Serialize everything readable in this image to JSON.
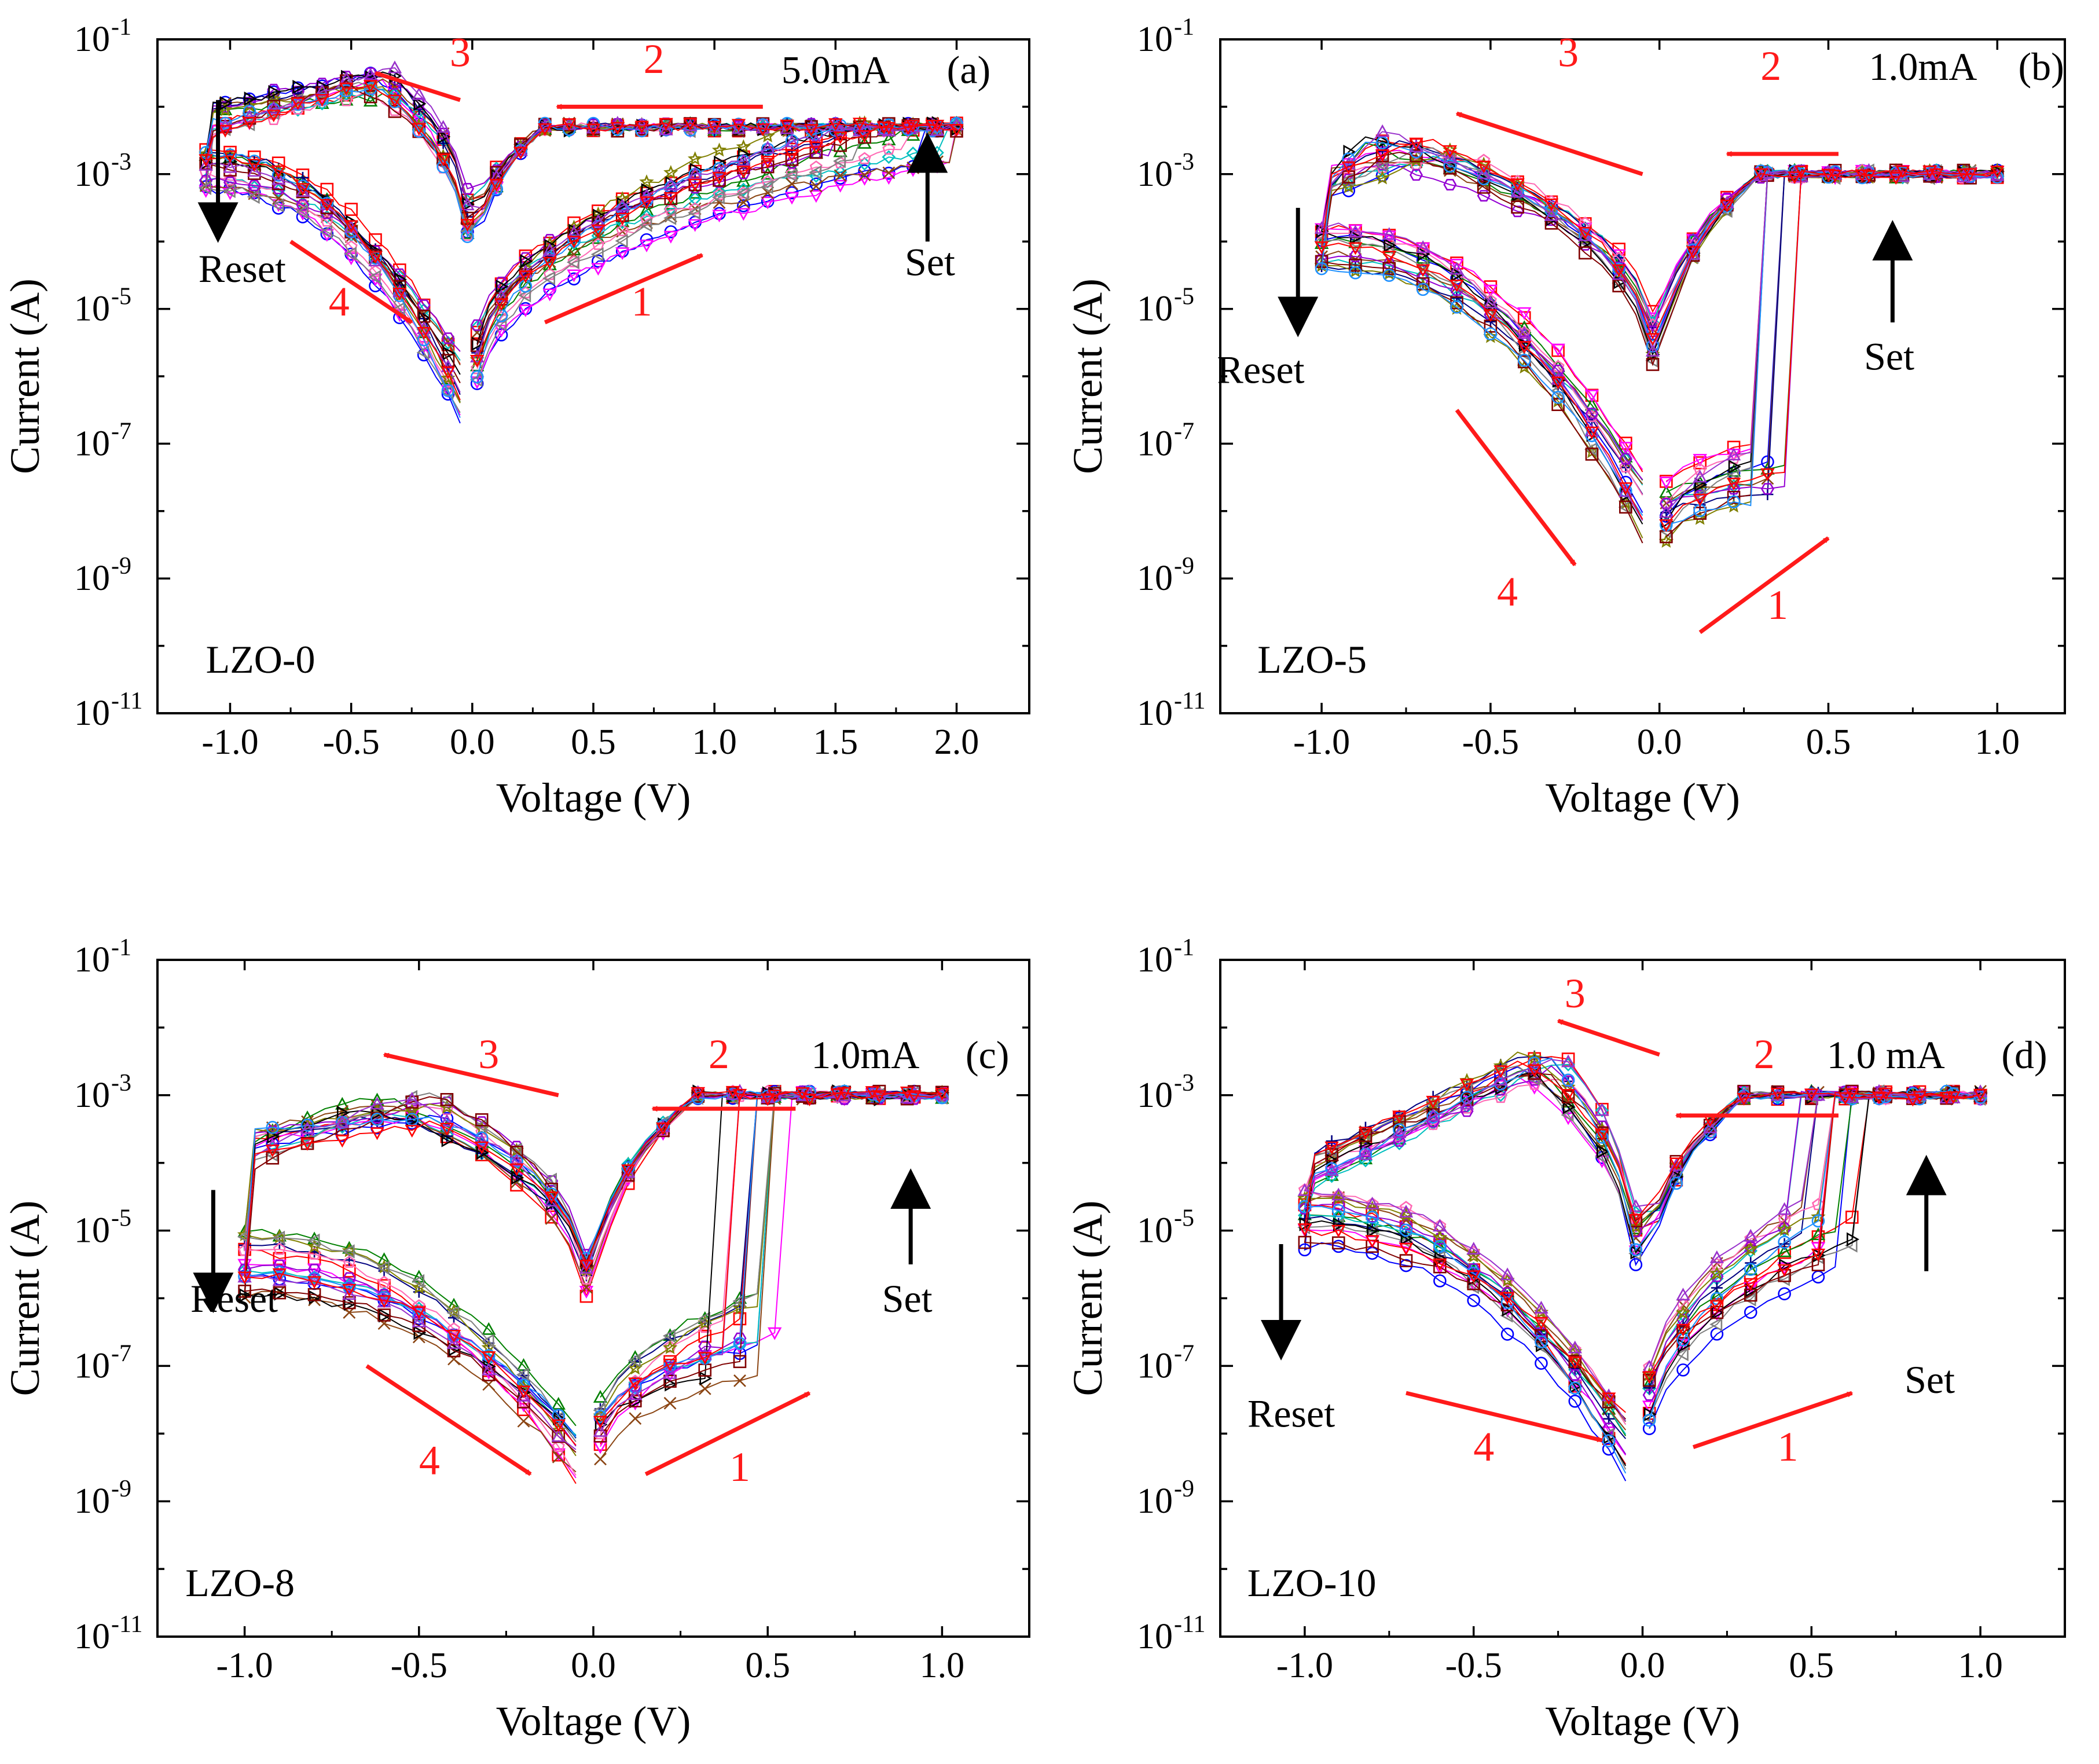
{
  "figure": {
    "x_axis_label": "Voltage (V)",
    "y_axis_label": "Current (A)",
    "colors": {
      "axis": "#000000",
      "red_arrow": "#ff1a1a",
      "black_arrow": "#000000",
      "series": [
        "#ff0000",
        "#0000ff",
        "#008000",
        "#ff00ff",
        "#00bfbf",
        "#8b4513",
        "#000080",
        "#ff69b4",
        "#9400d3",
        "#808000",
        "#808080",
        "#000000",
        "#800000",
        "#1e90ff",
        "#9932cc"
      ]
    }
  },
  "chart_data": [
    {
      "type": "scatter",
      "panel": "(a)",
      "sample": "LZO-0",
      "compliance": "5.0mA",
      "compliance_A": 0.005,
      "xlabel": "Voltage (V)",
      "ylabel": "Current (A)",
      "xlim": [
        -1.3,
        2.3
      ],
      "ylim": [
        1e-11,
        0.1
      ],
      "yscale": "log",
      "xticks": [
        "-1.0",
        "-0.5",
        "0.0",
        "0.5",
        "1.0",
        "1.5",
        "2.0"
      ],
      "xtick_values": [
        -1.0,
        -0.5,
        0.0,
        0.5,
        1.0,
        1.5,
        2.0
      ],
      "yticks": [
        {
          "base": "10",
          "exp": "-1",
          "v": -1
        },
        {
          "base": "10",
          "exp": "-3",
          "v": -3
        },
        {
          "base": "10",
          "exp": "-5",
          "v": -5
        },
        {
          "base": "10",
          "exp": "-7",
          "v": -7
        },
        {
          "base": "10",
          "exp": "-9",
          "v": -9
        },
        {
          "base": "10",
          "exp": "-11",
          "v": -11
        }
      ],
      "set_voltage": 1.75,
      "reset_voltage": -0.42,
      "hrs_log_at_neg1": -2.9,
      "hrs_log_at_pos_end": -2.4,
      "lrs_log_at_neg1": -2.2,
      "lrs_peak_log": -1.6,
      "dip_log": -6.5,
      "vmax": 2.0,
      "vmin": -1.1,
      "cycles": 16,
      "annotations": {
        "step_1": "1",
        "step_2": "2",
        "step_3": "3",
        "step_4": "4",
        "set": "Set",
        "reset": "Reset"
      },
      "annotation_pos": {
        "label_1": [
          0.7,
          -5.1
        ],
        "arrow_1": [
          [
            0.3,
            -5.2
          ],
          [
            0.95,
            -4.2
          ]
        ],
        "label_2": [
          0.75,
          -1.5
        ],
        "arrow_2": [
          [
            1.2,
            -2.0
          ],
          [
            0.35,
            -2.0
          ]
        ],
        "label_3": [
          -0.05,
          -1.4
        ],
        "arrow_3": [
          [
            -0.05,
            -1.9
          ],
          [
            -0.4,
            -1.5
          ]
        ],
        "label_4": [
          -0.55,
          -5.1
        ],
        "arrow_4": [
          [
            -0.75,
            -4.0
          ],
          [
            -0.25,
            -5.2
          ]
        ],
        "set_label": [
          1.89,
          -4.5
        ],
        "set_arrow": [
          [
            1.88,
            -4.0
          ],
          [
            1.88,
            -2.5
          ]
        ],
        "reset_label": [
          -0.95,
          -4.6
        ],
        "reset_arrow": [
          [
            -1.05,
            -1.9
          ],
          [
            -1.05,
            -3.9
          ]
        ],
        "sample_label": [
          -1.1,
          -10.4
        ],
        "compliance_label": [
          1.5,
          -1.65
        ],
        "panel_label": [
          2.05,
          -1.65
        ]
      }
    },
    {
      "type": "scatter",
      "panel": "(b)",
      "sample": "LZO-5",
      "compliance": "1.0mA",
      "compliance_A": 0.001,
      "xlabel": "Voltage (V)",
      "ylabel": "Current (A)",
      "xlim": [
        -1.3,
        1.2
      ],
      "ylim": [
        1e-11,
        0.1
      ],
      "yscale": "log",
      "xticks": [
        "-1.0",
        "-0.5",
        "0.0",
        "0.5",
        "1.0"
      ],
      "xtick_values": [
        -1.0,
        -0.5,
        0.0,
        0.5,
        1.0
      ],
      "yticks": [
        {
          "base": "10",
          "exp": "-1",
          "v": -1
        },
        {
          "base": "10",
          "exp": "-3",
          "v": -3
        },
        {
          "base": "10",
          "exp": "-5",
          "v": -5
        },
        {
          "base": "10",
          "exp": "-7",
          "v": -7
        },
        {
          "base": "10",
          "exp": "-9",
          "v": -9
        },
        {
          "base": "10",
          "exp": "-11",
          "v": -11
        }
      ],
      "set_voltage": 0.33,
      "reset_voltage": -0.7,
      "hrs_log_at_neg1": -4.0,
      "hrs_log_at_pos_end": -7.3,
      "lrs_log_at_neg1": -3.2,
      "lrs_peak_log": -2.6,
      "dip_log": -8.4,
      "vmax": 1.0,
      "vmin": -1.0,
      "cycles": 16,
      "annotations": {
        "step_1": "1",
        "step_2": "2",
        "step_3": "3",
        "step_4": "4",
        "set": "Set",
        "reset": "Reset"
      },
      "annotation_pos": {
        "label_1": [
          0.35,
          -9.6
        ],
        "arrow_1": [
          [
            0.12,
            -9.8
          ],
          [
            0.5,
            -8.4
          ]
        ],
        "label_2": [
          0.33,
          -1.6
        ],
        "arrow_2": [
          [
            0.53,
            -2.7
          ],
          [
            0.2,
            -2.7
          ]
        ],
        "label_3": [
          -0.27,
          -1.4
        ],
        "arrow_3": [
          [
            -0.05,
            -3.0
          ],
          [
            -0.6,
            -2.1
          ]
        ],
        "label_4": [
          -0.45,
          -9.4
        ],
        "arrow_4": [
          [
            -0.6,
            -6.5
          ],
          [
            -0.25,
            -8.8
          ]
        ],
        "set_label": [
          0.68,
          -5.9
        ],
        "set_arrow": [
          [
            0.69,
            -5.2
          ],
          [
            0.69,
            -3.8
          ]
        ],
        "reset_label": [
          -1.18,
          -6.1
        ],
        "reset_arrow": [
          [
            -1.07,
            -3.5
          ],
          [
            -1.07,
            -5.3
          ]
        ],
        "sample_label": [
          -1.19,
          -10.4
        ],
        "compliance_label": [
          0.78,
          -1.6
        ],
        "panel_label": [
          1.13,
          -1.6
        ]
      }
    },
    {
      "type": "scatter",
      "panel": "(c)",
      "sample": "LZO-8",
      "compliance": "1.0mA",
      "compliance_A": 0.001,
      "xlabel": "Voltage (V)",
      "ylabel": "Current (A)",
      "xlim": [
        -1.25,
        1.25
      ],
      "ylim": [
        1e-11,
        0.1
      ],
      "yscale": "log",
      "xticks": [
        "-1.0",
        "-0.5",
        "0.0",
        "0.5",
        "1.0"
      ],
      "xtick_values": [
        -1.0,
        -0.5,
        0.0,
        0.5,
        1.0
      ],
      "yticks": [
        {
          "base": "10",
          "exp": "-1",
          "v": -1
        },
        {
          "base": "10",
          "exp": "-3",
          "v": -3
        },
        {
          "base": "10",
          "exp": "-5",
          "v": -5
        },
        {
          "base": "10",
          "exp": "-7",
          "v": -7
        },
        {
          "base": "10",
          "exp": "-9",
          "v": -9
        },
        {
          "base": "10",
          "exp": "-11",
          "v": -11
        }
      ],
      "set_voltage": 0.45,
      "reset_voltage": -0.55,
      "hrs_log_at_neg1": -5.5,
      "hrs_log_at_pos_end": -6.5,
      "lrs_log_at_neg1": -3.8,
      "lrs_peak_log": -3.2,
      "dip_log": -8.6,
      "vmax": 1.0,
      "vmin": -1.0,
      "cycles": 16,
      "annotations": {
        "step_1": "1",
        "step_2": "2",
        "step_3": "3",
        "step_4": "4",
        "set": "Set",
        "reset": "Reset"
      },
      "annotation_pos": {
        "label_1": [
          0.42,
          -8.7
        ],
        "arrow_1": [
          [
            0.15,
            -8.6
          ],
          [
            0.62,
            -7.4
          ]
        ],
        "label_2": [
          0.36,
          -2.6
        ],
        "arrow_2": [
          [
            0.58,
            -3.2
          ],
          [
            0.17,
            -3.2
          ]
        ],
        "label_3": [
          -0.3,
          -2.6
        ],
        "arrow_3": [
          [
            -0.1,
            -3.0
          ],
          [
            -0.6,
            -2.4
          ]
        ],
        "label_4": [
          -0.47,
          -8.6
        ],
        "arrow_4": [
          [
            -0.65,
            -7.0
          ],
          [
            -0.18,
            -8.6
          ]
        ],
        "set_label": [
          0.9,
          -6.2
        ],
        "set_arrow": [
          [
            0.91,
            -5.5
          ],
          [
            0.91,
            -4.2
          ]
        ],
        "reset_label": [
          -1.03,
          -6.2
        ],
        "reset_arrow": [
          [
            -1.09,
            -4.4
          ],
          [
            -1.09,
            -6.1
          ]
        ],
        "sample_label": [
          -1.17,
          -10.4
        ],
        "compliance_label": [
          0.78,
          -2.6
        ],
        "panel_label": [
          1.13,
          -2.6
        ]
      }
    },
    {
      "type": "scatter",
      "panel": "(d)",
      "sample": "LZO-10",
      "compliance": "1.0 mA",
      "compliance_A": 0.001,
      "xlabel": "Voltage (V)",
      "ylabel": "Current (A)",
      "xlim": [
        -1.25,
        1.25
      ],
      "ylim": [
        1e-11,
        0.1
      ],
      "yscale": "log",
      "xticks": [
        "-1.0",
        "-0.5",
        "0.0",
        "0.5",
        "1.0"
      ],
      "xtick_values": [
        -1.0,
        -0.5,
        0.0,
        0.5,
        1.0
      ],
      "yticks": [
        {
          "base": "10",
          "exp": "-1",
          "v": -1
        },
        {
          "base": "10",
          "exp": "-3",
          "v": -3
        },
        {
          "base": "10",
          "exp": "-5",
          "v": -5
        },
        {
          "base": "10",
          "exp": "-7",
          "v": -7
        },
        {
          "base": "10",
          "exp": "-9",
          "v": -9
        },
        {
          "base": "10",
          "exp": "-11",
          "v": -11
        }
      ],
      "set_voltage": 0.55,
      "reset_voltage": -0.3,
      "hrs_log_at_neg1": -4.8,
      "hrs_log_at_pos_end": -5.0,
      "lrs_log_at_neg1": -4.2,
      "lrs_peak_log": -2.5,
      "dip_log": -8.6,
      "vmax": 1.0,
      "vmin": -1.0,
      "cycles": 16,
      "annotations": {
        "step_1": "1",
        "step_2": "2",
        "step_3": "3",
        "step_4": "4",
        "set": "Set",
        "reset": "Reset"
      },
      "annotation_pos": {
        "label_1": [
          0.43,
          -8.4
        ],
        "arrow_1": [
          [
            0.15,
            -8.2
          ],
          [
            0.62,
            -7.4
          ]
        ],
        "label_2": [
          0.36,
          -2.6
        ],
        "arrow_2": [
          [
            0.58,
            -3.3
          ],
          [
            0.1,
            -3.3
          ]
        ],
        "label_3": [
          -0.2,
          -1.7
        ],
        "arrow_3": [
          [
            0.05,
            -2.4
          ],
          [
            -0.25,
            -1.9
          ]
        ],
        "label_4": [
          -0.47,
          -8.4
        ],
        "arrow_4": [
          [
            -0.7,
            -7.4
          ],
          [
            -0.12,
            -8.1
          ]
        ],
        "set_label": [
          0.85,
          -7.4
        ],
        "set_arrow": [
          [
            0.84,
            -5.6
          ],
          [
            0.84,
            -4.0
          ]
        ],
        "reset_label": [
          -1.04,
          -7.9
        ],
        "reset_arrow": [
          [
            -1.07,
            -5.2
          ],
          [
            -1.07,
            -6.8
          ]
        ],
        "sample_label": [
          -1.17,
          -10.4
        ],
        "compliance_label": [
          0.72,
          -2.6
        ],
        "panel_label": [
          1.13,
          -2.6
        ]
      }
    }
  ]
}
